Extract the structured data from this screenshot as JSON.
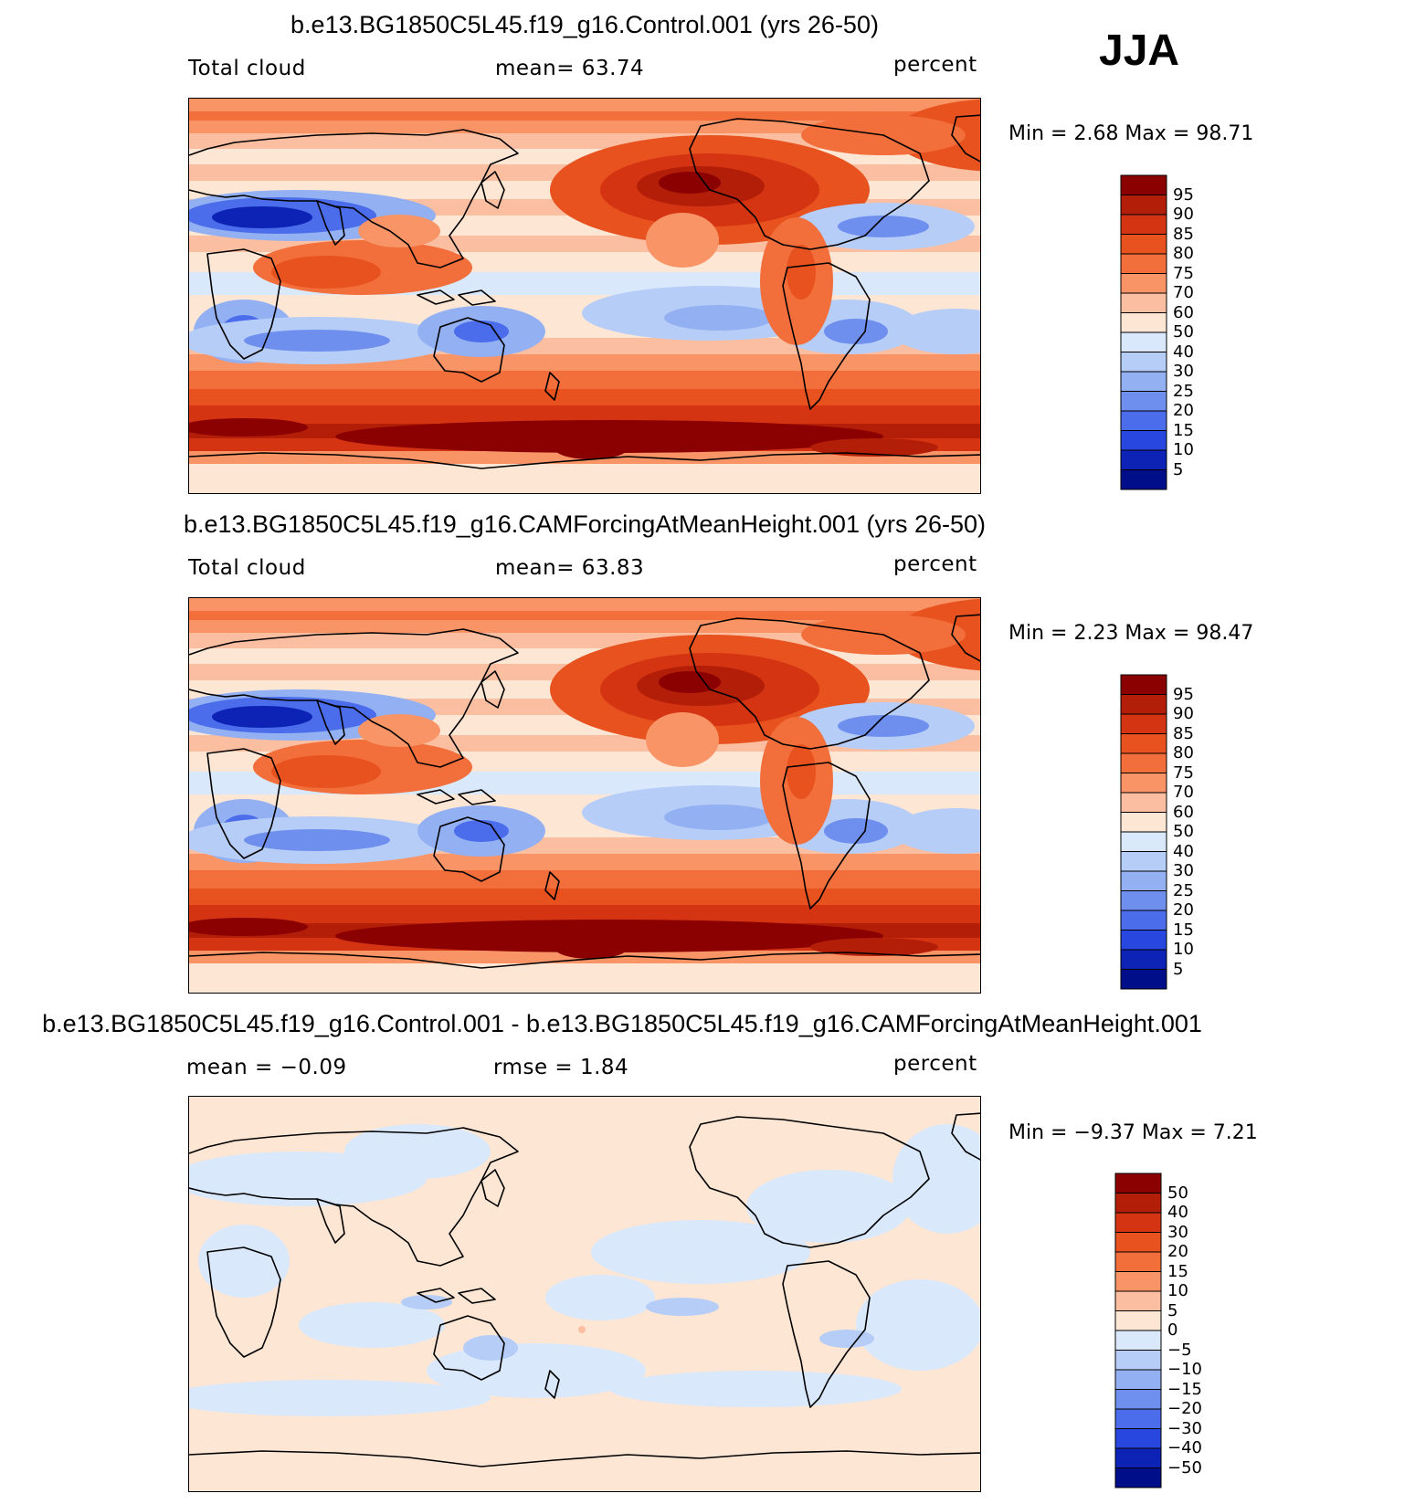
{
  "season": "JJA",
  "panels": [
    {
      "title": "b.e13.BG1850C5L45.f19_g16.Control.001 (yrs 26-50)",
      "left_label": "Total cloud",
      "center_label": "mean=   63.74",
      "units": "percent",
      "minmax": "Min =    2.68  Max =   98.71",
      "kind": "abs"
    },
    {
      "title": "b.e13.BG1850C5L45.f19_g16.CAMForcingAtMeanHeight.001 (yrs 26-50)",
      "left_label": "Total cloud",
      "center_label": "mean=   63.83",
      "units": "percent",
      "minmax": "Min =    2.23  Max =   98.47",
      "kind": "abs"
    },
    {
      "title": "b.e13.BG1850C5L45.f19_g16.Control.001 - b.e13.BG1850C5L45.f19_g16.CAMForcingAtMeanHeight.001",
      "left_label": "mean =   −0.09",
      "center_label": "rmse =    1.84",
      "units": "percent",
      "minmax": "Min =  −9.37  Max =    7.21",
      "kind": "diff"
    }
  ],
  "colorbar_abs": {
    "labels": [
      "95",
      "90",
      "85",
      "80",
      "75",
      "70",
      "60",
      "50",
      "40",
      "30",
      "25",
      "20",
      "15",
      "10",
      "5"
    ],
    "colors": [
      "#8b0000",
      "#b31e08",
      "#d43412",
      "#e8521e",
      "#f26f3c",
      "#f99467",
      "#fbbea0",
      "#fde6d4",
      "#d9e8fb",
      "#b6cdf7",
      "#93b0f2",
      "#6f8fee",
      "#4b6deb",
      "#2847de",
      "#0d23b6",
      "#000e8a"
    ]
  },
  "colorbar_diff": {
    "labels": [
      "50",
      "40",
      "30",
      "20",
      "15",
      "10",
      "5",
      "0",
      "−5",
      "−10",
      "−15",
      "−20",
      "−30",
      "−40",
      "−50"
    ],
    "colors": [
      "#8b0000",
      "#b31e08",
      "#d43412",
      "#e8521e",
      "#f26f3c",
      "#f99467",
      "#fbbea0",
      "#fde6d4",
      "#d9e8fb",
      "#b6cdf7",
      "#93b0f2",
      "#6f8fee",
      "#4b6deb",
      "#2847de",
      "#0d23b6",
      "#000e8a"
    ]
  },
  "chart_data": [
    {
      "type": "heatmap",
      "title": "b.e13.BG1850C5L45.f19_g16.Control.001 (yrs 26-50)",
      "variable": "Total cloud",
      "units": "percent",
      "season": "JJA",
      "mean": 63.74,
      "min": 2.68,
      "max": 98.71,
      "levels": [
        5,
        10,
        15,
        20,
        25,
        30,
        40,
        50,
        60,
        70,
        75,
        80,
        85,
        90,
        95
      ]
    },
    {
      "type": "heatmap",
      "title": "b.e13.BG1850C5L45.f19_g16.CAMForcingAtMeanHeight.001 (yrs 26-50)",
      "variable": "Total cloud",
      "units": "percent",
      "season": "JJA",
      "mean": 63.83,
      "min": 2.23,
      "max": 98.47,
      "levels": [
        5,
        10,
        15,
        20,
        25,
        30,
        40,
        50,
        60,
        70,
        75,
        80,
        85,
        90,
        95
      ]
    },
    {
      "type": "heatmap",
      "title": "Control.001 - CAMForcingAtMeanHeight.001",
      "units": "percent",
      "season": "JJA",
      "mean": -0.09,
      "rmse": 1.84,
      "min": -9.37,
      "max": 7.21,
      "levels": [
        -50,
        -40,
        -30,
        -20,
        -15,
        -10,
        -5,
        0,
        5,
        10,
        15,
        20,
        30,
        40,
        50
      ]
    }
  ]
}
